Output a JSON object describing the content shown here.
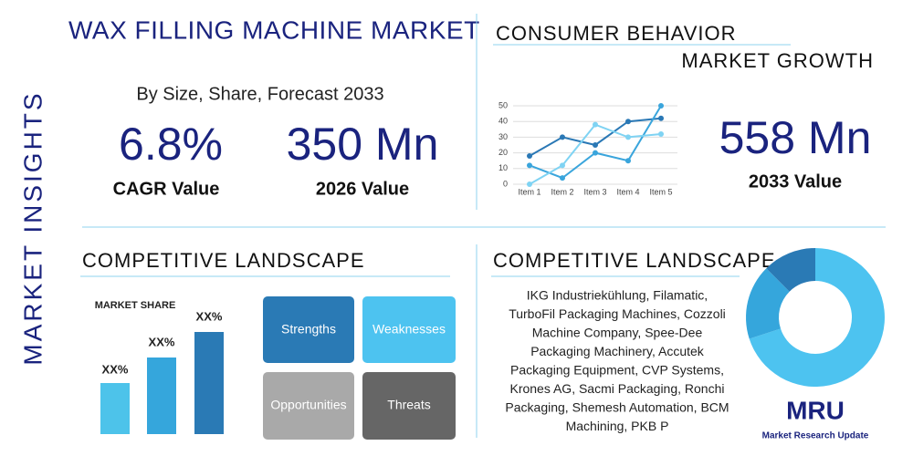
{
  "header": {
    "title": "WAX FILLING MACHINE MARKET",
    "subtitle": "By Size, Share, Forecast 2033"
  },
  "side_label": "MARKET INSIGHTS",
  "stats": [
    {
      "value": "6.8%",
      "label": "CAGR Value"
    },
    {
      "value": "350 Mn",
      "label": "2026 Value"
    },
    {
      "value": "558 Mn",
      "label": "2033 Value"
    }
  ],
  "consumer_behavior": {
    "title": "CONSUMER BEHAVIOR",
    "subtitle": "MARKET GROWTH"
  },
  "chart_data": {
    "type": "line",
    "categories": [
      "Item 1",
      "Item 2",
      "Item 3",
      "Item 4",
      "Item 5"
    ],
    "series": [
      {
        "color": "#2a78b5",
        "values": [
          18,
          30,
          25,
          40,
          42
        ]
      },
      {
        "color": "#3aa5dc",
        "values": [
          12,
          4,
          20,
          15,
          50
        ]
      },
      {
        "color": "#7fd3f3",
        "values": [
          0,
          12,
          38,
          30,
          32
        ]
      }
    ],
    "ylim": [
      0,
      50
    ],
    "yticks": [
      0,
      10,
      20,
      30,
      40,
      50
    ],
    "grid": true
  },
  "market_share": {
    "title": "MARKET SHARE",
    "bar_labels": [
      "XX%",
      "XX%",
      "XX%"
    ]
  },
  "competitive_landscape": {
    "title": "COMPETITIVE LANDSCAPE",
    "swot": [
      "Strengths",
      "Weaknesses",
      "Opportunities",
      "Threats"
    ]
  },
  "companies": {
    "title": "COMPETITIVE LANDSCAPE",
    "lines": [
      "IKG Industriekühlung, Filamatic,",
      "TurboFil Packaging Machines, Cozzoli",
      "Machine Company, Spee-Dee",
      "Packaging Machinery, Accutek",
      "Packaging Equipment, CVP Systems,",
      "Krones AG, Sacmi Packaging, Ronchi",
      "Packaging, Shemesh Automation, BCM",
      "Machining, PKB P"
    ]
  },
  "logo": {
    "text": "MRU",
    "caption": "Market Research Update"
  }
}
